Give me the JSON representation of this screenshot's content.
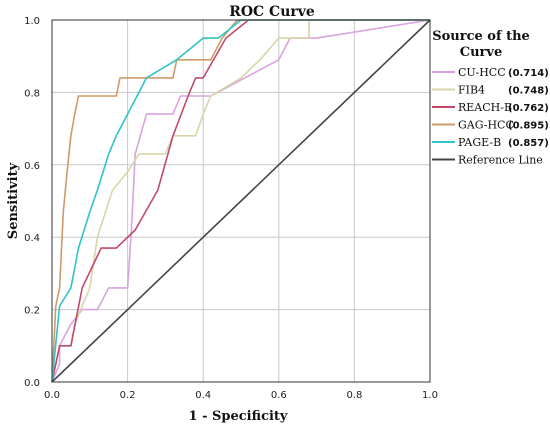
{
  "chart_data": {
    "type": "line",
    "title": "ROC Curve",
    "xlabel": "1 - Specificity",
    "ylabel": "Sensitivity",
    "xlim": [
      0,
      1
    ],
    "ylim": [
      0,
      1
    ],
    "x_ticks": [
      "0.0",
      "0.2",
      "0.4",
      "0.6",
      "0.8",
      "1.0"
    ],
    "y_ticks": [
      "0.0",
      "0.2",
      "0.4",
      "0.6",
      "0.8",
      "1.0"
    ],
    "grid": true,
    "legend": {
      "title_line1": "Source of the",
      "title_line2": "Curve",
      "placement": "right"
    },
    "series": [
      {
        "name": "CU-HCC",
        "auc": "(0.714)",
        "color": "#d9a3e0",
        "x": [
          0,
          0.02,
          0.02,
          0.05,
          0.08,
          0.12,
          0.15,
          0.2,
          0.21,
          0.22,
          0.25,
          0.32,
          0.34,
          0.38,
          0.42,
          0.6,
          0.63,
          0.7,
          1.0
        ],
        "y": [
          0,
          0.05,
          0.1,
          0.16,
          0.2,
          0.2,
          0.26,
          0.26,
          0.42,
          0.63,
          0.74,
          0.74,
          0.79,
          0.79,
          0.79,
          0.89,
          0.95,
          0.95,
          1.0
        ]
      },
      {
        "name": "FIB4",
        "auc": "(0.748)",
        "color": "#d8d6a8",
        "x": [
          0,
          0.02,
          0.05,
          0.06,
          0.1,
          0.12,
          0.16,
          0.2,
          0.23,
          0.3,
          0.32,
          0.38,
          0.4,
          0.42,
          0.5,
          0.55,
          0.6,
          0.68,
          0.68,
          0.75,
          1.0
        ],
        "y": [
          0,
          0.1,
          0.1,
          0.16,
          0.26,
          0.4,
          0.53,
          0.58,
          0.63,
          0.63,
          0.68,
          0.68,
          0.74,
          0.79,
          0.84,
          0.89,
          0.95,
          0.95,
          1.0,
          1.0,
          1.0
        ]
      },
      {
        "name": "REACH-B",
        "auc": "(0.762)",
        "color": "#c14a6b",
        "x": [
          0,
          0.02,
          0.05,
          0.08,
          0.13,
          0.17,
          0.22,
          0.28,
          0.32,
          0.36,
          0.38,
          0.4,
          0.46,
          0.52,
          0.55,
          1.0
        ],
        "y": [
          0,
          0.1,
          0.1,
          0.26,
          0.37,
          0.37,
          0.42,
          0.53,
          0.68,
          0.79,
          0.84,
          0.84,
          0.95,
          1.0,
          1.0,
          1.0
        ]
      },
      {
        "name": "GAG-HCC",
        "auc": "(0.895)",
        "color": "#cf9a6a",
        "x": [
          0,
          0.01,
          0.02,
          0.03,
          0.04,
          0.05,
          0.06,
          0.07,
          0.17,
          0.18,
          0.32,
          0.33,
          0.42,
          0.45,
          0.49,
          1.0
        ],
        "y": [
          0,
          0.21,
          0.26,
          0.47,
          0.58,
          0.68,
          0.74,
          0.79,
          0.79,
          0.84,
          0.84,
          0.89,
          0.89,
          0.95,
          1.0,
          1.0
        ]
      },
      {
        "name": "PAGE-B",
        "auc": "(0.857)",
        "color": "#2ec4c8",
        "x": [
          0,
          0.02,
          0.05,
          0.07,
          0.1,
          0.12,
          0.15,
          0.17,
          0.2,
          0.25,
          0.33,
          0.4,
          0.44,
          0.5,
          1.0
        ],
        "y": [
          0,
          0.21,
          0.26,
          0.37,
          0.47,
          0.53,
          0.63,
          0.68,
          0.74,
          0.84,
          0.89,
          0.95,
          0.95,
          1.0,
          1.0
        ]
      },
      {
        "name": "Reference Line",
        "auc": "",
        "color": "#444444",
        "x": [
          0,
          1
        ],
        "y": [
          0,
          1
        ]
      }
    ]
  }
}
